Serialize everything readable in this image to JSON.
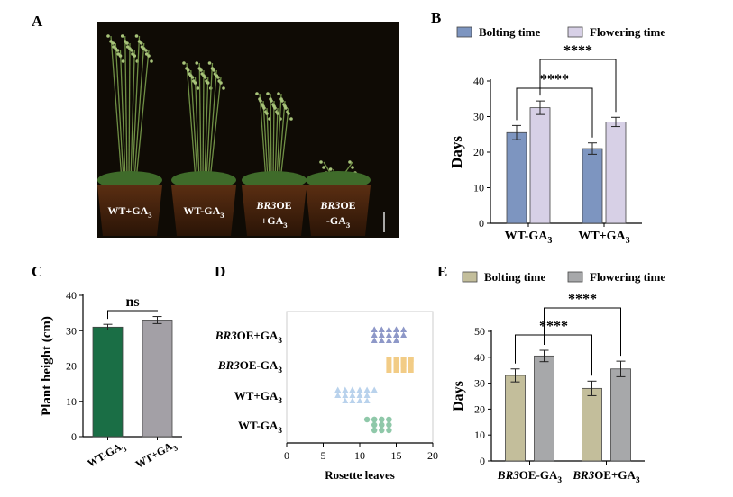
{
  "panel_labels": {
    "A": "A",
    "B": "B",
    "C": "C",
    "D": "D",
    "E": "E"
  },
  "colors": {
    "bolting_blue": "#7d95c0",
    "flowering_lavender": "#d7d0e6",
    "bolting_olive": "#c3be9b",
    "flowering_gray": "#a7a8aa",
    "green_bar": "#1a6e45",
    "gray_bar": "#a3a0a6",
    "D_bro_ga": "#8e98c8",
    "D_bro_minus": "#f2cc86",
    "D_wt_plus": "#b9d2ec",
    "D_wt_minus": "#8fc8a9",
    "photo_bg": "#0f0b05"
  },
  "panelA": {
    "pot_labels": [
      {
        "main": "WT+GA",
        "sub": "3"
      },
      {
        "main": "WT-GA",
        "sub": "3"
      },
      {
        "italic": "BR3",
        "main": "OE",
        "line2": "+GA",
        "sub": "3"
      },
      {
        "italic": "BR3",
        "main": "OE",
        "line2": "-GA",
        "sub": "3"
      }
    ]
  },
  "chart_data": [
    {
      "panel": "B",
      "type": "bar",
      "categories": [
        {
          "main": "WT-GA",
          "sub": "3"
        },
        {
          "main": "WT+GA",
          "sub": "3"
        }
      ],
      "series": [
        {
          "name": "Bolting time",
          "values": [
            25.5,
            21.0
          ],
          "errors": [
            2.0,
            1.6
          ]
        },
        {
          "name": "Flowering time",
          "values": [
            32.5,
            28.5
          ],
          "errors": [
            1.9,
            1.3
          ]
        }
      ],
      "ylabel": "Days",
      "ylim": [
        0,
        40
      ],
      "yticks": [
        "0",
        "10",
        "20",
        "30",
        "40"
      ],
      "legend": "top",
      "significance": [
        {
          "label": "****",
          "from": [
            0,
            0
          ],
          "to": [
            1,
            0
          ]
        },
        {
          "label": "****",
          "from": [
            0,
            1
          ],
          "to": [
            1,
            1
          ]
        }
      ]
    },
    {
      "panel": "C",
      "type": "bar",
      "categories": [
        {
          "main": "WT-GA",
          "sub": "3"
        },
        {
          "main": "WT+GA",
          "sub": "3"
        }
      ],
      "series": [
        {
          "values": [
            31.0,
            33.0
          ],
          "errors": [
            0.8,
            1.0
          ]
        }
      ],
      "ylabel": "Plant height (cm)",
      "ylim": [
        0,
        40
      ],
      "yticks": [
        "0",
        "10",
        "20",
        "30",
        "40"
      ],
      "significance": [
        {
          "label": "ns",
          "from": [
            0,
            0
          ],
          "to": [
            1,
            0
          ]
        }
      ]
    },
    {
      "panel": "D",
      "type": "scatter",
      "categories": [
        {
          "italic": "BR3",
          "main": "OE+GA",
          "sub": "3"
        },
        {
          "italic": "BR3",
          "main": "OE-GA",
          "sub": "3"
        },
        {
          "main": "WT+GA",
          "sub": "3"
        },
        {
          "main": "WT-GA",
          "sub": "3"
        }
      ],
      "groups": [
        {
          "values": [
            12,
            12,
            12,
            13,
            13,
            13,
            14,
            14,
            14,
            15,
            15,
            15,
            16,
            16,
            12,
            13,
            14,
            15
          ]
        },
        {
          "values": [
            14,
            14,
            15,
            15,
            15,
            16,
            16,
            16,
            17,
            17,
            17,
            14,
            15,
            16,
            17,
            16
          ]
        },
        {
          "values": [
            7,
            7,
            8,
            8,
            9,
            9,
            9,
            10,
            10,
            11,
            11,
            12,
            8,
            10,
            9,
            11
          ]
        },
        {
          "values": [
            11,
            12,
            12,
            13,
            13,
            13,
            14,
            14,
            12,
            13,
            14,
            13,
            12,
            14
          ]
        }
      ],
      "markers": [
        "triangle",
        "square",
        "triangle",
        "circle"
      ],
      "xlabel": "Rosette leaves",
      "xlim": [
        0,
        20
      ],
      "xticks": [
        "0",
        "5",
        "10",
        "15",
        "20"
      ]
    },
    {
      "panel": "E",
      "type": "bar",
      "categories": [
        {
          "italic": "BR3",
          "main": "OE-GA",
          "sub": "3"
        },
        {
          "italic": "BR3",
          "main": "OE+GA",
          "sub": "3"
        }
      ],
      "series": [
        {
          "name": "Bolting time",
          "values": [
            33.0,
            28.0
          ],
          "errors": [
            2.5,
            2.8
          ]
        },
        {
          "name": "Flowering time",
          "values": [
            40.5,
            35.5
          ],
          "errors": [
            2.2,
            3.0
          ]
        }
      ],
      "ylabel": "Days",
      "ylim": [
        0,
        50
      ],
      "yticks": [
        "0",
        "10",
        "20",
        "30",
        "40",
        "50"
      ],
      "legend": "top",
      "significance": [
        {
          "label": "****",
          "from": [
            0,
            0
          ],
          "to": [
            1,
            0
          ]
        },
        {
          "label": "****",
          "from": [
            0,
            1
          ],
          "to": [
            1,
            1
          ]
        }
      ]
    }
  ]
}
